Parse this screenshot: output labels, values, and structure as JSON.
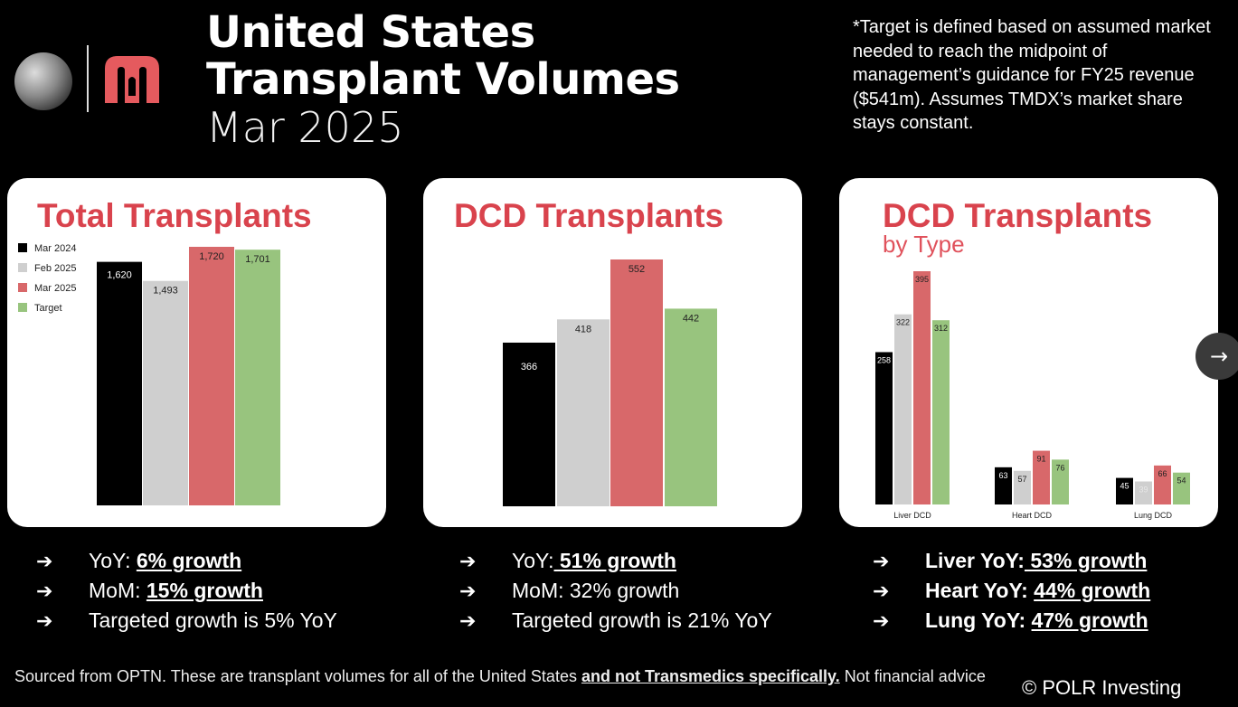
{
  "header": {
    "title_line1": "United States",
    "title_line2": "Transplant Volumes",
    "subtitle": "Mar 2025"
  },
  "note": "*Target is defined based on assumed market needed to reach the midpoint of management’s guidance for FY25 revenue ($541m). Assumes TMDX’s market share stays constant.",
  "colors": {
    "mar2024": "#000000",
    "feb2025": "#cfcfcf",
    "mar2025": "#d8686a",
    "target": "#98c47e",
    "title_red": "#d9434d"
  },
  "legend": [
    "Mar 2024",
    "Feb 2025",
    "Mar 2025",
    "Target"
  ],
  "chart_data": [
    {
      "type": "bar",
      "title": "Total Transplants",
      "categories": [
        "Mar 2024",
        "Feb 2025",
        "Mar 2025",
        "Target"
      ],
      "values": [
        1620,
        1493,
        1720,
        1701
      ],
      "labels": [
        "1,620",
        "1,493",
        "1,720",
        "1,701"
      ]
    },
    {
      "type": "bar",
      "title": "DCD Transplants",
      "categories": [
        "Mar 2024",
        "Feb 2025",
        "Mar 2025",
        "Target"
      ],
      "values": [
        366,
        418,
        552,
        442
      ],
      "labels": [
        "366",
        "418",
        "552",
        "442"
      ]
    },
    {
      "type": "bar",
      "title": "DCD Transplants",
      "subtitle": "by Type",
      "categories": [
        "Liver DCD",
        "Heart DCD",
        "Lung DCD"
      ],
      "series": [
        {
          "name": "Mar 2024",
          "values": [
            258,
            63,
            45
          ]
        },
        {
          "name": "Feb 2025",
          "values": [
            322,
            57,
            39
          ]
        },
        {
          "name": "Mar 2025",
          "values": [
            395,
            91,
            66
          ]
        },
        {
          "name": "Target",
          "values": [
            312,
            76,
            54
          ]
        }
      ]
    }
  ],
  "bullets": [
    [
      {
        "prefix": "YoY: ",
        "emph": "6% growth"
      },
      {
        "prefix": "MoM: ",
        "emph": "15% growth"
      },
      {
        "prefix": "Targeted growth is 5% YoY",
        "emph": ""
      }
    ],
    [
      {
        "prefix": "YoY:",
        "emph": " 51% growth"
      },
      {
        "prefix": "MoM: 32% growth",
        "emph": ""
      },
      {
        "prefix": "Targeted growth is 21% YoY",
        "emph": ""
      }
    ],
    [
      {
        "prefix": "Liver YoY:",
        "emph": " 53% growth"
      },
      {
        "prefix": "Heart YoY: ",
        "emph": "44% growth"
      },
      {
        "prefix": "Lung YoY: ",
        "emph": "47% growth"
      }
    ]
  ],
  "arrow_glyph": "➔",
  "footer": {
    "text_before": "Sourced from OPTN. These are transplant volumes for all of the United States ",
    "text_emph": "and not Transmedics specifically.",
    "text_after": " Not financial advice"
  },
  "copyright": "© POLR Investing",
  "next_button": "→"
}
